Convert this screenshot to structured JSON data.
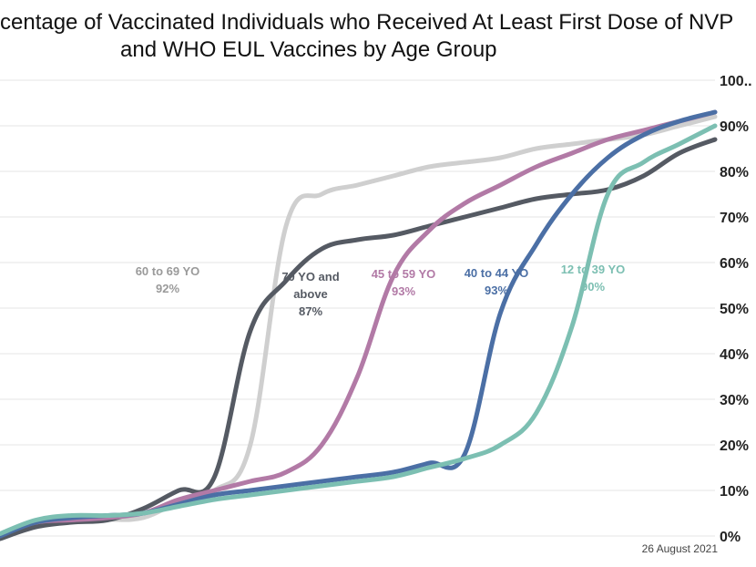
{
  "title_line1": "rcentage of Vaccinated Individuals who Received At Least First Dose of NVP",
  "title_line2": "and WHO EUL Vaccines by Age Group",
  "date": "26 August 2021",
  "chart_data": {
    "type": "line",
    "title": "rcentage of Vaccinated Individuals who Received At Least First Dose of NVP and WHO EUL Vaccines by Age Group",
    "ylim": [
      0,
      100
    ],
    "yticks": [
      "0%",
      "10%",
      "20%",
      "30%",
      "40%",
      "50%",
      "60%",
      "70%",
      "80%",
      "90%",
      "100.."
    ],
    "grid": true,
    "x": [
      0,
      5,
      10,
      15,
      20,
      25,
      30,
      35,
      40,
      45,
      50,
      55,
      60,
      65,
      70,
      75,
      80,
      85,
      90,
      95,
      100
    ],
    "series": [
      {
        "key": "s60",
        "label": [
          "60 to 69 YO",
          "92%"
        ],
        "color": "#cfcfcf",
        "values": [
          0.2,
          3,
          3.5,
          3.6,
          4,
          7.5,
          10,
          20,
          68,
          75,
          77,
          79,
          81,
          82,
          83,
          85,
          86,
          87,
          88,
          90,
          92
        ]
      },
      {
        "key": "s70",
        "label": [
          "70 YO and",
          "above",
          "87%"
        ],
        "color": "#555a63",
        "values": [
          -0.6,
          2,
          3,
          3.5,
          6,
          10,
          13,
          45,
          56,
          63,
          65,
          66,
          68,
          70,
          72,
          74,
          75,
          76,
          79,
          84,
          87
        ]
      },
      {
        "key": "s45",
        "label": [
          "45 to 59 YO",
          "93%"
        ],
        "color": "#b27aa6",
        "values": [
          0.3,
          3,
          3.5,
          4,
          5,
          8,
          10,
          12,
          14,
          20,
          35,
          57,
          67,
          73,
          77,
          81,
          84,
          87,
          89,
          91,
          93
        ]
      },
      {
        "key": "s40",
        "label": [
          "40 to 44 YO",
          "93%"
        ],
        "color": "#4b6fa5",
        "values": [
          0,
          3,
          4,
          4.5,
          5,
          7,
          9,
          10,
          11,
          12,
          13,
          14,
          16,
          18,
          49,
          64,
          75,
          83,
          88,
          91,
          93
        ]
      },
      {
        "key": "s12",
        "label": [
          "12 to 39 YO",
          "90%"
        ],
        "color": "#7cbfb2",
        "values": [
          0.5,
          3.5,
          4.5,
          4.5,
          5,
          6.5,
          8,
          9,
          10,
          11,
          12,
          13,
          15,
          17,
          20,
          27,
          46,
          75,
          82,
          86,
          90
        ]
      }
    ]
  }
}
